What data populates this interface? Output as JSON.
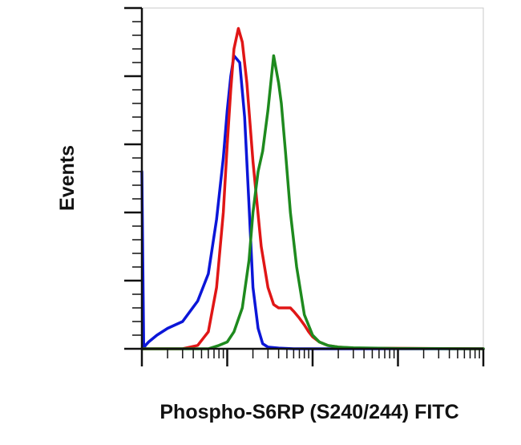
{
  "chart_data": {
    "type": "line",
    "title": "",
    "xlabel": "Phospho-S6RP (S240/244) FITC",
    "ylabel": "Events",
    "x_scale": "log",
    "xlim": [
      10,
      100000
    ],
    "ylim": [
      0,
      100
    ],
    "grid": false,
    "legend": "none",
    "series": [
      {
        "color": "#0b16d8",
        "x": [
          10,
          10.5,
          11,
          12,
          15,
          20,
          30,
          45,
          60,
          75,
          90,
          100,
          110,
          120,
          140,
          160,
          180,
          200,
          230,
          260,
          300,
          400,
          600,
          1000,
          5000,
          100000
        ],
        "y": [
          52,
          0,
          1,
          2,
          4,
          6,
          8,
          14,
          22,
          38,
          56,
          70,
          80,
          86,
          84,
          68,
          42,
          18,
          6,
          1.5,
          0.5,
          0.2,
          0,
          0,
          0,
          0
        ]
      },
      {
        "color": "#e01616",
        "x": [
          10,
          20,
          30,
          45,
          60,
          75,
          90,
          100,
          110,
          120,
          135,
          150,
          170,
          200,
          250,
          300,
          350,
          400,
          450,
          500,
          550,
          600,
          700,
          800,
          900,
          1000,
          1200,
          1500,
          2000,
          3000,
          100000
        ],
        "y": [
          0,
          0,
          0,
          1,
          5,
          18,
          40,
          60,
          76,
          88,
          94,
          90,
          78,
          55,
          30,
          18,
          13,
          12,
          12,
          12,
          12,
          11,
          9,
          7,
          5,
          3.5,
          2,
          1,
          0.5,
          0.2,
          0
        ]
      },
      {
        "color": "#1e8a1e",
        "x": [
          10,
          30,
          60,
          80,
          100,
          120,
          150,
          180,
          200,
          230,
          260,
          300,
          350,
          400,
          430,
          480,
          550,
          650,
          800,
          1000,
          1200,
          1500,
          2000,
          3000,
          5000,
          10000,
          100000
        ],
        "y": [
          0,
          0,
          0,
          1,
          2,
          5,
          12,
          26,
          40,
          52,
          58,
          70,
          86,
          78,
          72,
          58,
          40,
          24,
          10,
          4,
          2,
          1,
          0.5,
          0.3,
          0.2,
          0.1,
          0
        ]
      }
    ]
  }
}
